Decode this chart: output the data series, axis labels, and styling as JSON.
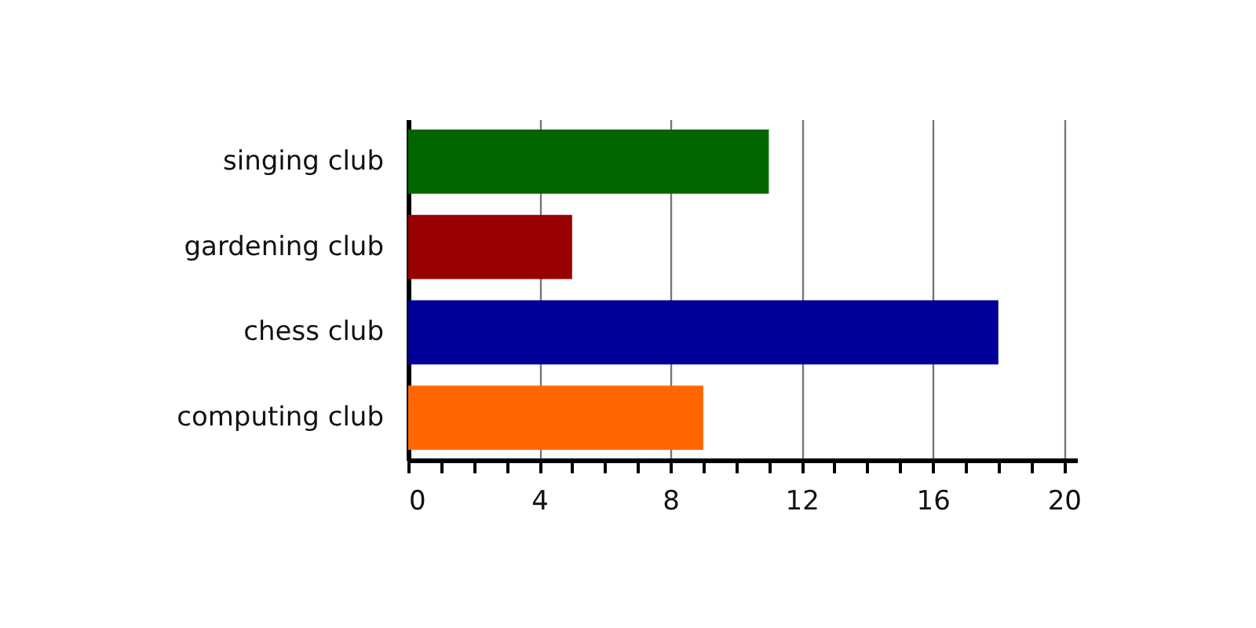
{
  "chart_data": {
    "type": "bar",
    "orientation": "horizontal",
    "categories": [
      "singing club",
      "gardening club",
      "chess club",
      "computing club"
    ],
    "values": [
      11,
      5,
      18,
      9
    ],
    "colors": [
      "#006600",
      "#990000",
      "#000099",
      "#ff6600"
    ],
    "xlim": [
      0,
      20.4
    ],
    "xticks": [
      0,
      {
        "value": 1,
        "label": null
      },
      {
        "value": 2,
        "label": null
      },
      {
        "value": 3,
        "label": null
      },
      4,
      {
        "value": 5,
        "label": null
      },
      {
        "value": 6,
        "label": null
      },
      {
        "value": 7,
        "label": null
      },
      8,
      {
        "value": 9,
        "label": null
      },
      {
        "value": 10,
        "label": null
      },
      {
        "value": 11,
        "label": null
      },
      12,
      {
        "value": 13,
        "label": null
      },
      {
        "value": 14,
        "label": null
      },
      {
        "value": 15,
        "label": null
      },
      16,
      {
        "value": 17,
        "label": null
      },
      {
        "value": 18,
        "label": null
      },
      {
        "value": 19,
        "label": null
      },
      20
    ],
    "grid": "x"
  }
}
